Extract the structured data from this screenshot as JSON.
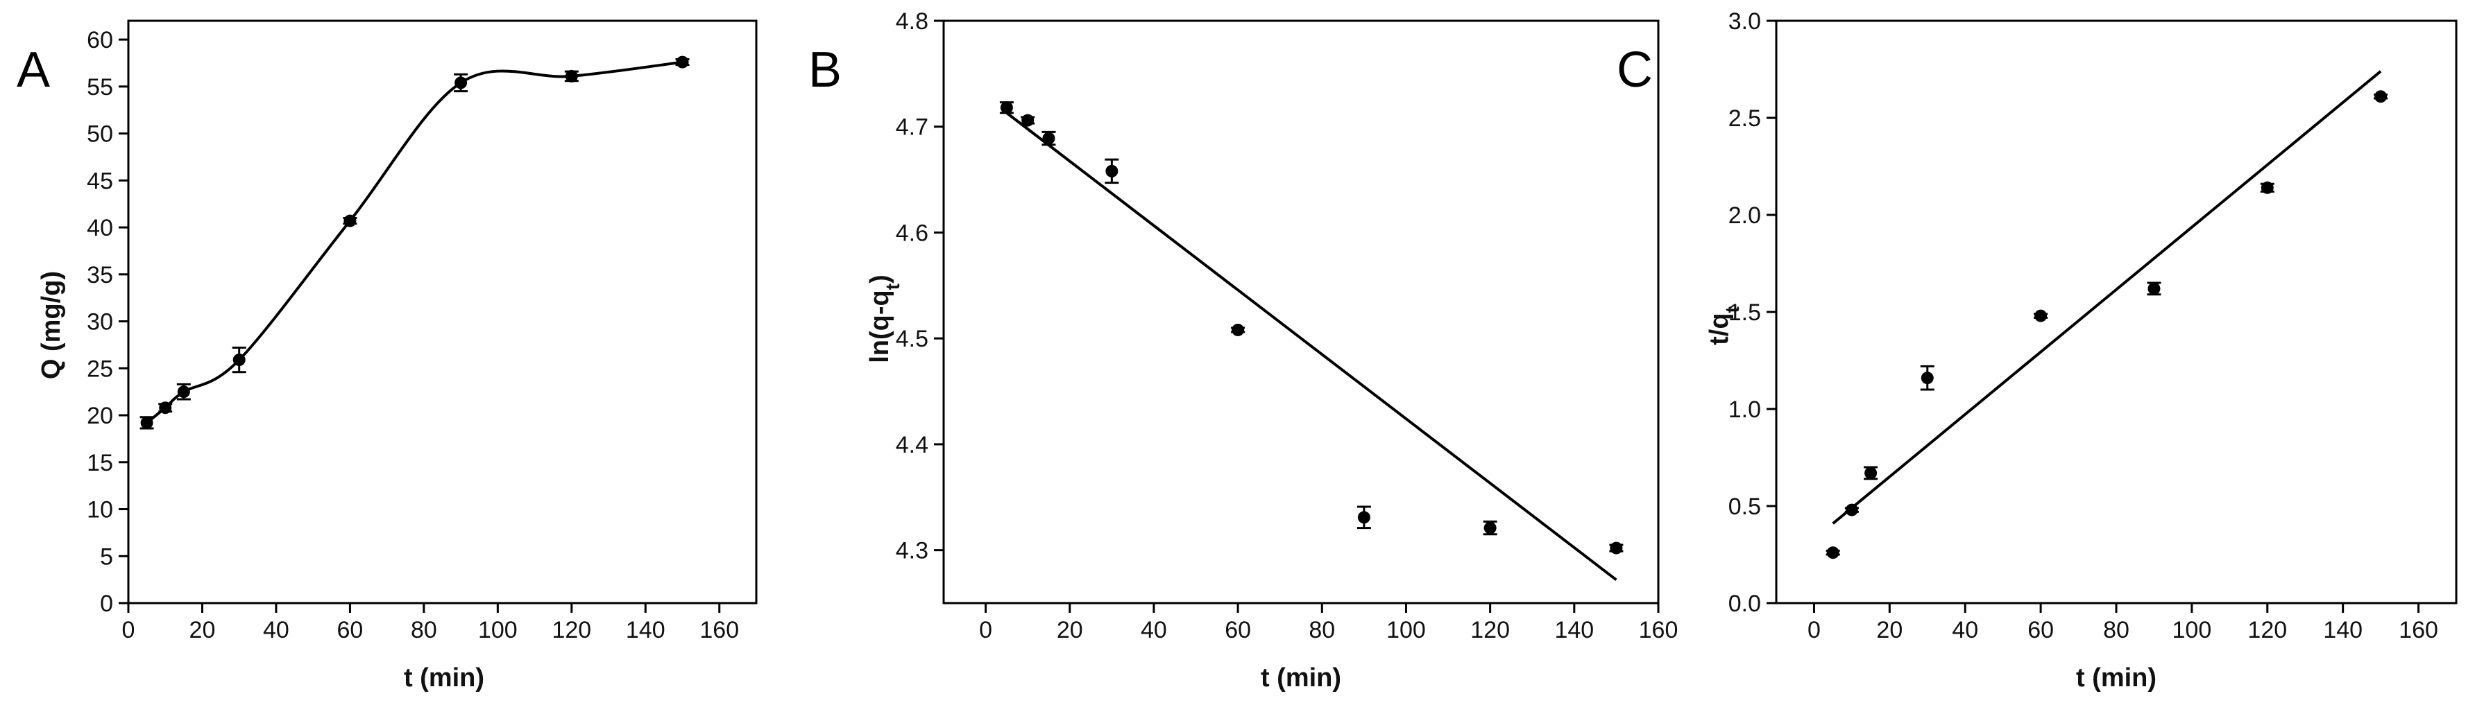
{
  "chart_data": [
    {
      "type": "line",
      "panel_label": "A",
      "xlabel": "t (min)",
      "ylabel": "Q (mg/g)",
      "xlim": [
        0,
        170
      ],
      "ylim": [
        0,
        62
      ],
      "xticks": [
        0,
        20,
        40,
        60,
        80,
        100,
        120,
        140,
        160
      ],
      "yticks": [
        0,
        5,
        10,
        15,
        20,
        25,
        30,
        35,
        40,
        45,
        50,
        55,
        60
      ],
      "grid": false,
      "series": [
        {
          "x": [
            5,
            10,
            15,
            30,
            60,
            90,
            120,
            150
          ],
          "y": [
            19.2,
            20.8,
            22.5,
            25.9,
            40.7,
            55.4,
            56.1,
            57.6
          ],
          "err": [
            0.6,
            0.4,
            0.8,
            1.3,
            0.3,
            0.9,
            0.5,
            0.3
          ],
          "style": "smooth line with markers"
        }
      ]
    },
    {
      "type": "scatter",
      "panel_label": "B",
      "xlabel": "t (min)",
      "ylabel": "ln(q-qt)",
      "ylabel_main": "ln(q-q",
      "ylabel_sub": "t",
      "ylabel_end": ")",
      "xlim": [
        -10,
        160
      ],
      "ylim": [
        4.25,
        4.8
      ],
      "xticks": [
        0,
        20,
        40,
        60,
        80,
        100,
        120,
        140,
        160
      ],
      "yticks": [
        4.3,
        4.4,
        4.5,
        4.6,
        4.7,
        4.8
      ],
      "grid": false,
      "series": [
        {
          "x": [
            5,
            10,
            15,
            30,
            60,
            90,
            120,
            150
          ],
          "y": [
            4.718,
            4.706,
            4.689,
            4.658,
            4.508,
            4.331,
            4.321,
            4.302
          ],
          "err": [
            0.005,
            0.003,
            0.006,
            0.011,
            0.002,
            0.01,
            0.006,
            0.003
          ]
        }
      ],
      "fit_line": {
        "x": [
          5,
          150
        ],
        "y": [
          4.713,
          4.272
        ]
      }
    },
    {
      "type": "scatter",
      "panel_label": "C",
      "xlabel": "t (min)",
      "ylabel": "t/qt",
      "ylabel_main": "t/q",
      "ylabel_sub": "t",
      "xlim": [
        -10,
        170
      ],
      "ylim": [
        0,
        3.0
      ],
      "xticks": [
        0,
        20,
        40,
        60,
        80,
        100,
        120,
        140,
        160
      ],
      "yticks": [
        0.0,
        0.5,
        1.0,
        1.5,
        2.0,
        2.5,
        3.0
      ],
      "grid": false,
      "series": [
        {
          "x": [
            5,
            10,
            15,
            30,
            60,
            90,
            120,
            150
          ],
          "y": [
            0.26,
            0.48,
            0.67,
            1.16,
            1.48,
            1.62,
            2.14,
            2.61
          ],
          "err": [
            0.01,
            0.01,
            0.03,
            0.06,
            0.01,
            0.03,
            0.02,
            0.01
          ]
        }
      ],
      "fit_line": {
        "x": [
          5,
          150
        ],
        "y": [
          0.41,
          2.74
        ]
      }
    }
  ]
}
